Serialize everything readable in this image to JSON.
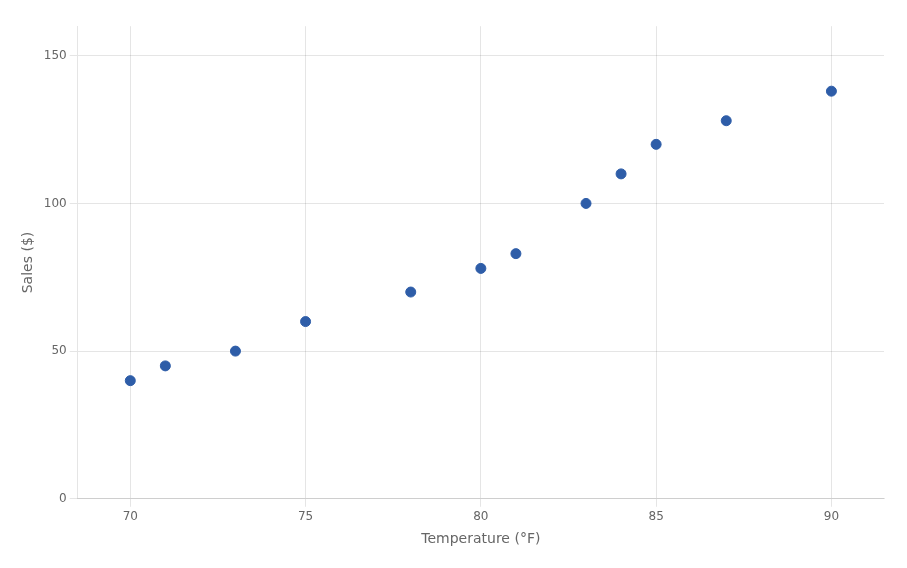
{
  "chart_data": {
    "type": "scatter",
    "x": [
      70,
      71,
      73,
      75,
      78,
      80,
      81,
      83,
      84,
      85,
      87,
      90
    ],
    "values": [
      40,
      45,
      50,
      60,
      70,
      78,
      83,
      100,
      110,
      120,
      128,
      138
    ],
    "color": "#2E5DA8",
    "xlabel": "Temperature (°F)",
    "ylabel": "Sales ($)",
    "xlim": [
      68.5,
      91.5
    ],
    "ylim": [
      0,
      160
    ],
    "xticks": [
      70,
      75,
      80,
      85,
      90
    ],
    "yticks": [
      0,
      50,
      100,
      150
    ],
    "grid": true
  }
}
